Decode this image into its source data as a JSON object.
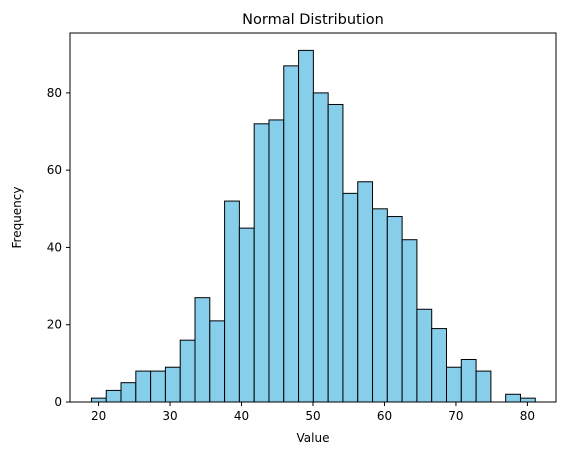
{
  "chart_data": {
    "type": "bar",
    "title": "Normal Distribution",
    "xlabel": "Value",
    "ylabel": "Frequency",
    "bar_color": "#87ceeb",
    "edge_color": "#000000",
    "grid": false,
    "xlim": [
      16.0,
      84.0
    ],
    "ylim": [
      0,
      95.5
    ],
    "x_ticks": [
      20,
      30,
      40,
      50,
      60,
      70,
      80
    ],
    "y_ticks": [
      0,
      20,
      40,
      60,
      80
    ],
    "bin_start": 19.0,
    "bin_width": 2.07,
    "values": [
      1,
      3,
      5,
      8,
      8,
      9,
      16,
      27,
      21,
      52,
      45,
      72,
      73,
      87,
      91,
      80,
      77,
      54,
      57,
      50,
      48,
      42,
      24,
      19,
      9,
      11,
      8,
      0,
      2,
      1
    ]
  }
}
